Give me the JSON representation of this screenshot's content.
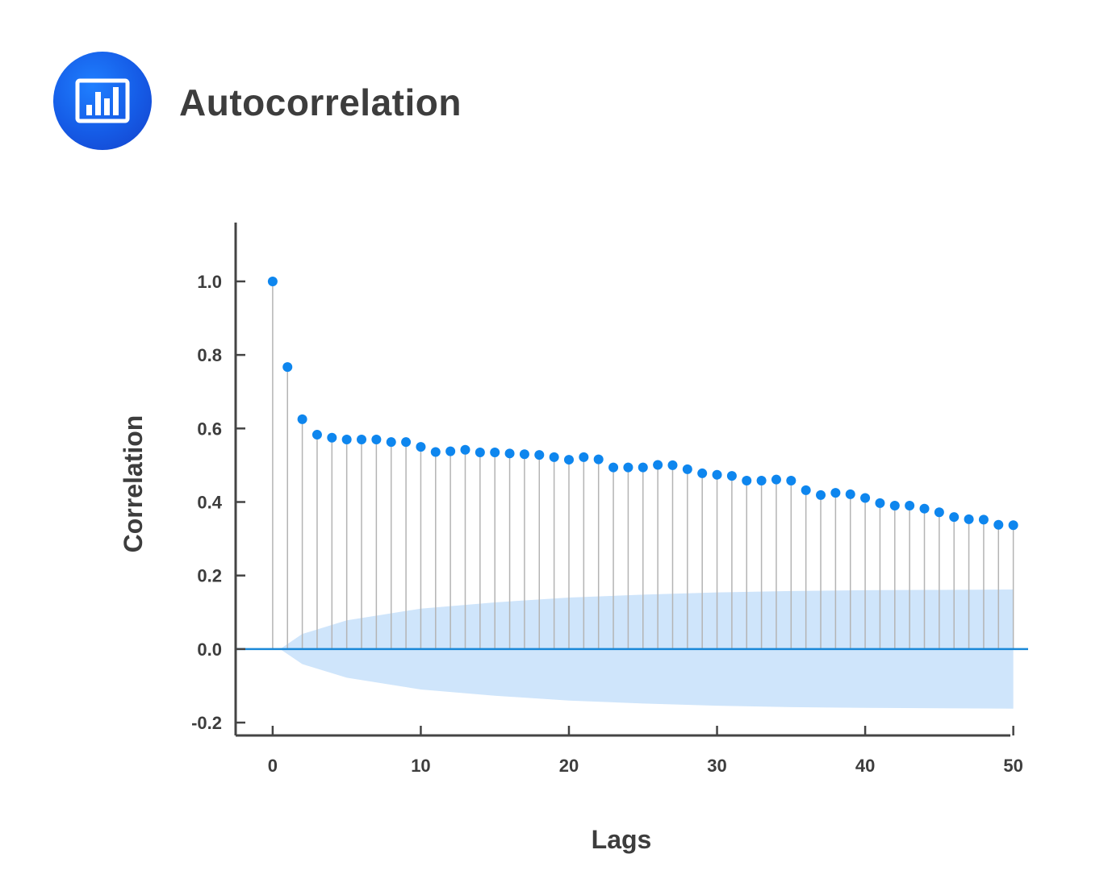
{
  "header": {
    "title": "Autocorrelation",
    "icon": "bar-chart-icon",
    "badge_color": "#155be6"
  },
  "chart_data": {
    "type": "stem",
    "title": "",
    "xlabel": "Lags",
    "ylabel": "Correlation",
    "xlim": [
      -2.5,
      51
    ],
    "ylim": [
      -0.235,
      1.16
    ],
    "xticks": [
      0,
      10,
      20,
      30,
      40,
      50
    ],
    "xtick_labels": [
      "0",
      "10",
      "20",
      "30",
      "40",
      "50"
    ],
    "yticks": [
      1.0,
      0.8,
      0.6,
      0.4,
      0.2,
      0.0,
      -0.2
    ],
    "ytick_labels": [
      "1.0",
      "0.8",
      "0.6",
      "0.4",
      "0.2",
      "0.0",
      "-0.2"
    ],
    "point_color": "#0e86ee",
    "stem_color": "#b4b4b4",
    "zero_line_color": "#1a88d8",
    "band_color": "#cfe5fb",
    "lags": [
      0,
      1,
      2,
      3,
      4,
      5,
      6,
      7,
      8,
      9,
      10,
      11,
      12,
      13,
      14,
      15,
      16,
      17,
      18,
      19,
      20,
      21,
      22,
      23,
      24,
      25,
      26,
      27,
      28,
      29,
      30,
      31,
      32,
      33,
      34,
      35,
      36,
      37,
      38,
      39,
      40,
      41,
      42,
      43,
      44,
      45,
      46,
      47,
      48,
      49,
      50
    ],
    "values": [
      1.0,
      0.767,
      0.625,
      0.583,
      0.575,
      0.57,
      0.57,
      0.57,
      0.563,
      0.563,
      0.55,
      0.536,
      0.538,
      0.542,
      0.535,
      0.535,
      0.532,
      0.53,
      0.528,
      0.522,
      0.515,
      0.522,
      0.516,
      0.494,
      0.494,
      0.494,
      0.501,
      0.5,
      0.489,
      0.478,
      0.474,
      0.471,
      0.458,
      0.458,
      0.461,
      0.458,
      0.432,
      0.419,
      0.425,
      0.421,
      0.411,
      0.397,
      0.39,
      0.39,
      0.382,
      0.372,
      0.359,
      0.353,
      0.352,
      0.338,
      0.337
    ],
    "confidence_band": {
      "lags": [
        0.5,
        2,
        5,
        10,
        15,
        20,
        25,
        30,
        35,
        40,
        45,
        50
      ],
      "upper": [
        0.0,
        0.041,
        0.078,
        0.11,
        0.127,
        0.14,
        0.148,
        0.154,
        0.158,
        0.16,
        0.161,
        0.162
      ],
      "lower": [
        0.0,
        -0.041,
        -0.078,
        -0.11,
        -0.127,
        -0.14,
        -0.148,
        -0.154,
        -0.158,
        -0.16,
        -0.161,
        -0.162
      ]
    }
  }
}
